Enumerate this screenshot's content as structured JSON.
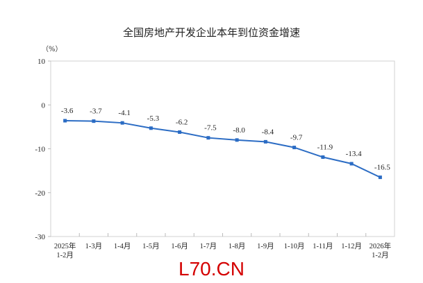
{
  "chart_data": {
    "type": "line",
    "title": "全国房地产开发企业本年到位资金增速",
    "ylabel": "（%）",
    "xlabel": "",
    "ylim": [
      -30,
      10
    ],
    "yticks": [
      10,
      0,
      -10,
      -20,
      -30
    ],
    "grid": false,
    "categories": [
      [
        "2025年",
        "1-2月"
      ],
      [
        "1-3月"
      ],
      [
        "1-4月"
      ],
      [
        "1-5月"
      ],
      [
        "1-6月"
      ],
      [
        "1-7月"
      ],
      [
        "1-8月"
      ],
      [
        "1-9月"
      ],
      [
        "1-10月"
      ],
      [
        "1-11月"
      ],
      [
        "1-12月"
      ],
      [
        "2026年",
        "1-2月"
      ]
    ],
    "series": [
      {
        "name": "本年到位资金增速",
        "color": "#2b6cc4",
        "values": [
          -3.6,
          -3.7,
          -4.1,
          -5.3,
          -6.2,
          -7.5,
          -8.0,
          -8.4,
          -9.7,
          -11.9,
          -13.4,
          -16.5
        ],
        "labels": [
          "-3.6",
          "-3.7",
          "-4.1",
          "-5.3",
          "-6.2",
          "-7.5",
          "-8.0",
          "-8.4",
          "-9.7",
          "-11.9",
          "-13.4",
          "-16.5"
        ]
      }
    ]
  },
  "watermark": "L70.CN"
}
